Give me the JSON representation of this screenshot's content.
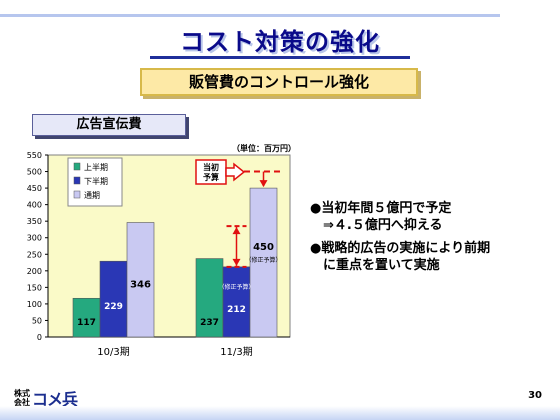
{
  "slide": {
    "title": "コスト対策の強化",
    "subtitle": "販管費のコントロール強化",
    "section": "広告宣伝費",
    "unit": "（単位：百万円）",
    "page_number": "30"
  },
  "logo": {
    "small_1": "株式",
    "small_2": "会社",
    "main": "コメ兵"
  },
  "bullets": [
    "●当初年間５億円で予定\n　⇒４.５億円へ抑える",
    "●戦略的広告の実施により前期\n　に重点を置いて実施"
  ],
  "callout": {
    "line1": "当初",
    "line2": "予算"
  },
  "colors": {
    "first_half": "#25a97f",
    "second_half": "#2a37b5",
    "full_year": "#c9c9f2",
    "plot_bg": "#fafac8",
    "callout": "#e01010"
  },
  "chart_data": {
    "type": "bar",
    "categories": [
      "10/3期",
      "11/3期"
    ],
    "series": [
      {
        "name": "上半期",
        "values": [
          117,
          237
        ],
        "labels": [
          "117",
          "237"
        ]
      },
      {
        "name": "下半期",
        "values": [
          229,
          212
        ],
        "labels": [
          "229",
          "212"
        ]
      },
      {
        "name": "通期",
        "values": [
          346,
          450
        ],
        "labels": [
          "346",
          "450"
        ]
      }
    ],
    "annotations": [
      "（修正予算）",
      "（修正予算）"
    ],
    "original_budget": 500,
    "ylim": [
      0,
      550
    ],
    "yticks": [
      0,
      50,
      100,
      150,
      200,
      250,
      300,
      350,
      400,
      450,
      500,
      550
    ],
    "legend_position": "top-left",
    "grid": false
  }
}
